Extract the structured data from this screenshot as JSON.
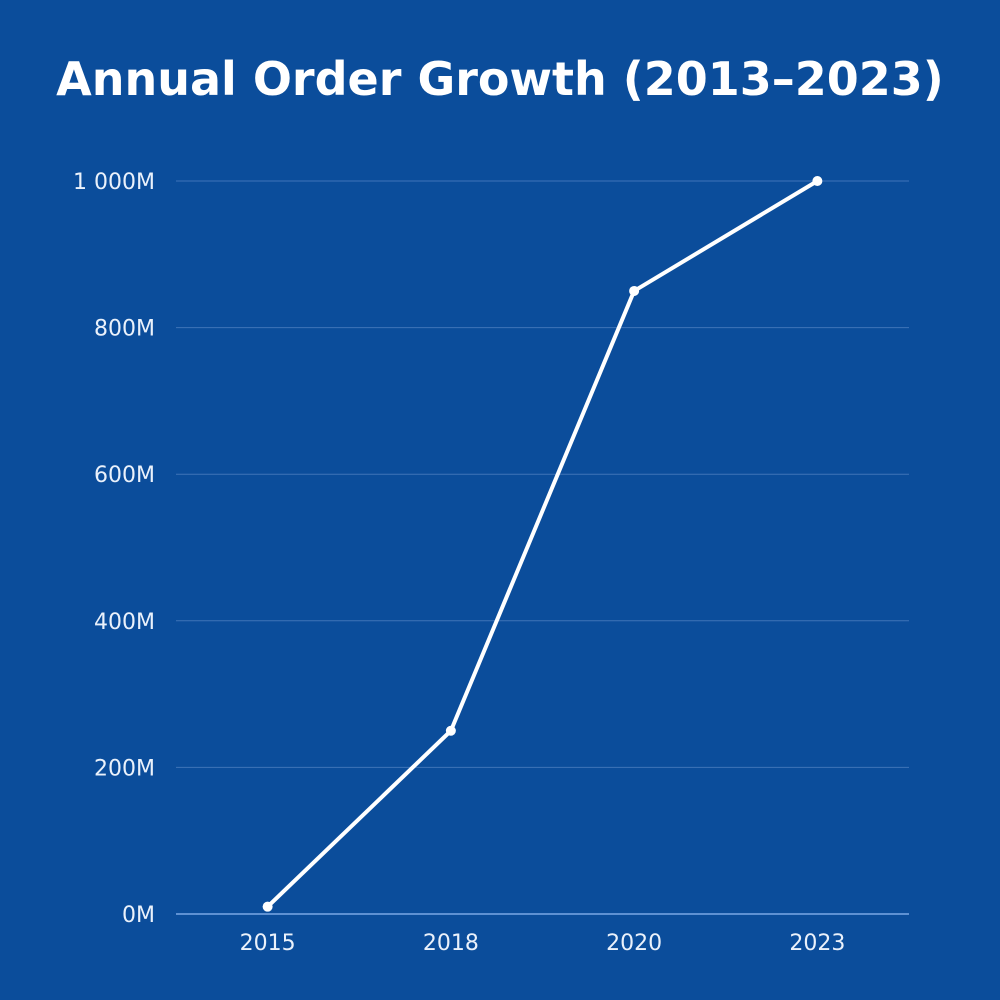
{
  "chart_data": {
    "type": "line",
    "title": "Annual Order Growth (2013–2023)",
    "xlabel": "",
    "ylabel": "",
    "categories": [
      "2015",
      "2018",
      "2020",
      "2023"
    ],
    "values": [
      10,
      250,
      850,
      1000
    ],
    "ylim": [
      0,
      1000
    ],
    "yticks": [
      0,
      200,
      400,
      600,
      800,
      1000
    ],
    "ytick_labels": [
      "0M",
      "200M",
      "400M",
      "600M",
      "800M",
      "1 000M"
    ],
    "grid": "horizontal",
    "colors": {
      "background": "#0b4d9b",
      "line": "#ffffff",
      "grid": "#3f74b8",
      "baseline": "#7aa8e6",
      "text": "#eaf1fb"
    }
  }
}
